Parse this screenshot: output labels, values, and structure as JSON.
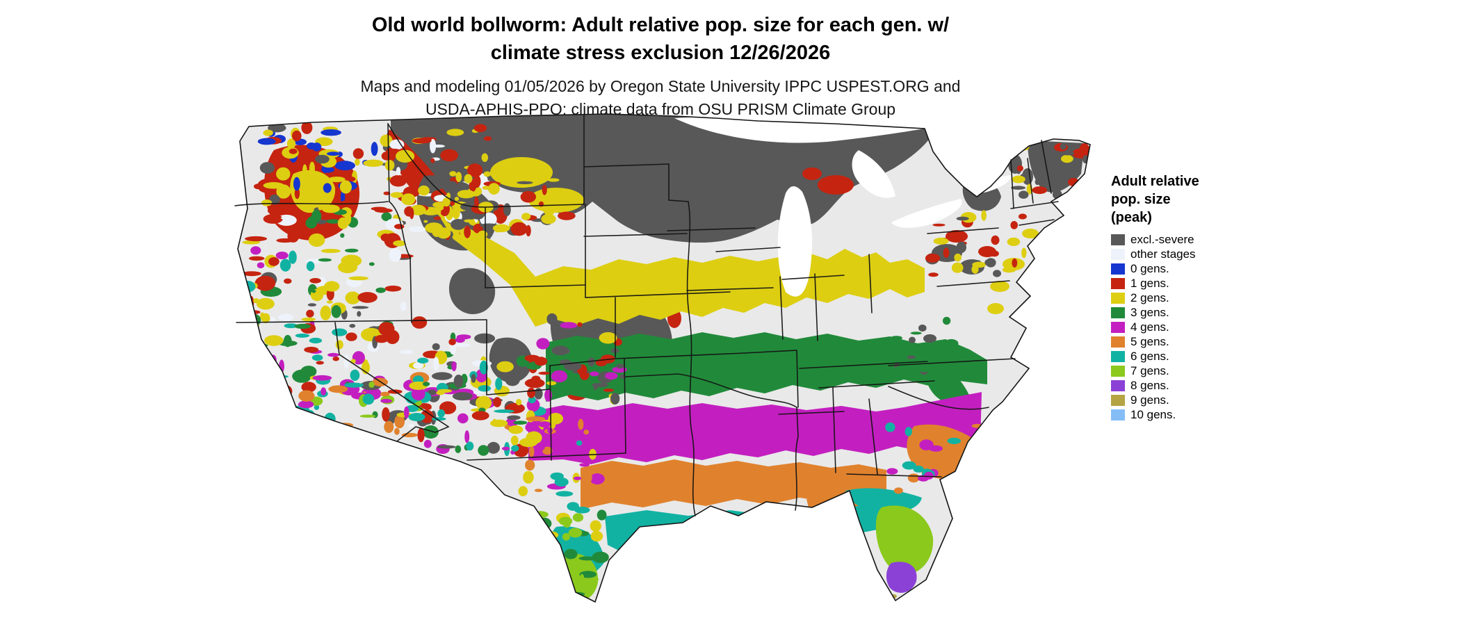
{
  "header": {
    "title_line1": "Old world bollworm: Adult relative pop. size for each gen. w/",
    "title_line2": "climate stress exclusion 12/26/2026",
    "subtitle_line1": "Maps and modeling 01/05/2026 by Oregon State University IPPC USPEST.ORG and",
    "subtitle_line2": "USDA-APHIS-PPQ; climate data from OSU PRISM Climate Group"
  },
  "legend": {
    "title_line1": "Adult relative",
    "title_line2": "pop. size",
    "title_line3": "(peak)",
    "items": [
      {
        "label": "excl.-severe",
        "color": "#585858"
      },
      {
        "label": "other stages",
        "color": "#eef3fb"
      },
      {
        "label": "0 gens.",
        "color": "#1536cf"
      },
      {
        "label": "1 gens.",
        "color": "#c52410"
      },
      {
        "label": "2 gens.",
        "color": "#ddce12"
      },
      {
        "label": "3 gens.",
        "color": "#218a3a"
      },
      {
        "label": "4 gens.",
        "color": "#c31fc0"
      },
      {
        "label": "5 gens.",
        "color": "#e0822d"
      },
      {
        "label": "6 gens.",
        "color": "#12b2a2"
      },
      {
        "label": "7 gens.",
        "color": "#8bc91c"
      },
      {
        "label": "8 gens.",
        "color": "#8b41d6"
      },
      {
        "label": "9 gens.",
        "color": "#b4a443"
      },
      {
        "label": "10 gens.",
        "color": "#85bdf6"
      }
    ]
  },
  "map": {
    "base_color": "#e9e9e9",
    "border_color": "#141414",
    "water_color": "#ffffff"
  }
}
